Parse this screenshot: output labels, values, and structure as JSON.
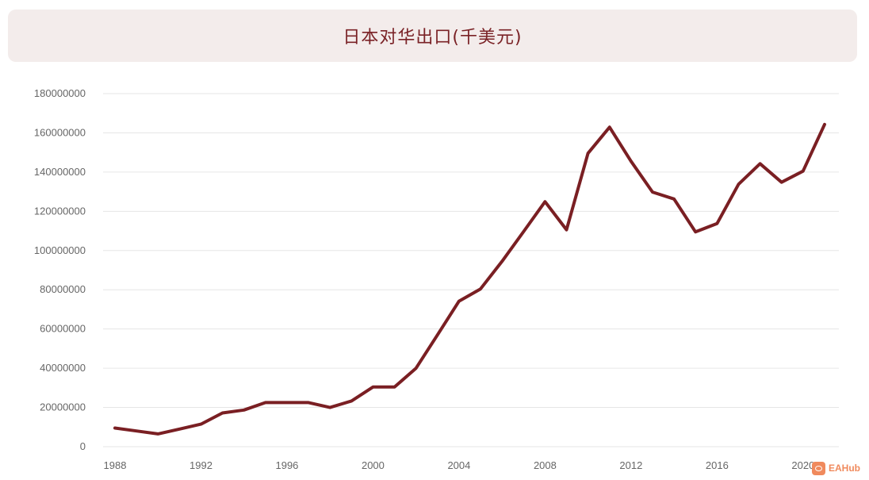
{
  "header": {
    "title": "日本对华出口(千美元)"
  },
  "watermark": {
    "text": "EAHub"
  },
  "colors": {
    "line": "#7a1f23",
    "title": "#7a2226",
    "title_bg": "#f3eceb",
    "grid": "#e6e6e6",
    "watermark": "#f08a5d"
  },
  "chart_data": {
    "type": "line",
    "title": "日本对华出口(千美元)",
    "xlabel": "",
    "ylabel": "",
    "xlim": [
      1988,
      2023
    ],
    "ylim": [
      0,
      180000000
    ],
    "x_ticks": [
      "1988",
      "1992",
      "1996",
      "2000",
      "2004",
      "2008",
      "2012",
      "2016",
      "2020"
    ],
    "y_ticks": [
      "0",
      "20000000",
      "40000000",
      "60000000",
      "80000000",
      "100000000",
      "120000000",
      "140000000",
      "160000000",
      "180000000"
    ],
    "grid": true,
    "legend": "none",
    "series": [
      {
        "x": [
          1988,
          1989,
          1990,
          1991,
          1992,
          1993,
          1994,
          1995,
          1996,
          1997,
          1998,
          1999,
          2000,
          2001,
          2002,
          2003,
          2004,
          2005,
          2006,
          2007,
          2008,
          2009,
          2010,
          2011,
          2012,
          2013,
          2014,
          2015,
          2016,
          2017,
          2018,
          2019,
          2020,
          2021
        ],
        "values": [
          9500000,
          8000000,
          6500000,
          9000000,
          11500000,
          17200000,
          18700000,
          22500000,
          22500000,
          22500000,
          20000000,
          23300000,
          30400000,
          30400000,
          40000000,
          57000000,
          74200000,
          80400000,
          94500000,
          109600000,
          124900000,
          110600000,
          149600000,
          162900000,
          145500000,
          129800000,
          126300000,
          109500000,
          113800000,
          133800000,
          144300000,
          134800000,
          140500000,
          164300000
        ]
      }
    ]
  }
}
